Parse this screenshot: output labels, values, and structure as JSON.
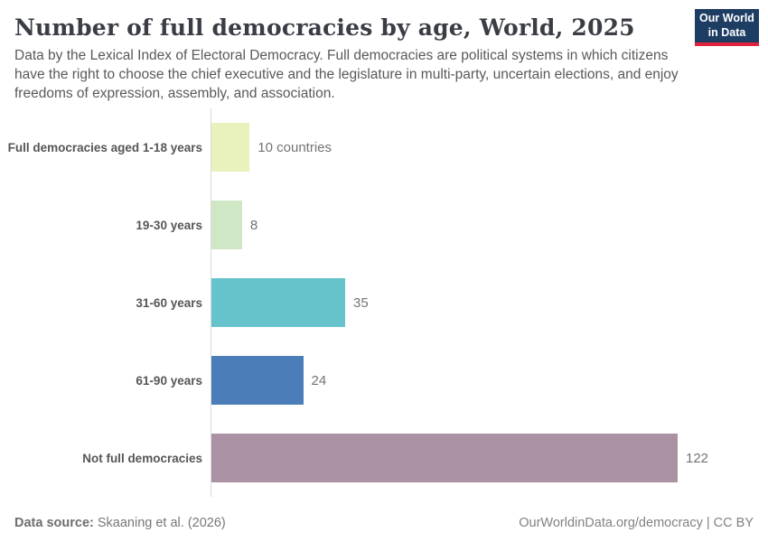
{
  "header": {
    "title": "Number of full democracies by age, World, 2025",
    "subtitle": "Data by the Lexical Index of Electoral Democracy. Full democracies are political systems in which citizens have the right to choose the chief executive and the legislature in multi-party, uncertain elections, and enjoy freedoms of expression, assembly, and association.",
    "logo": {
      "line1": "Our World",
      "line2": "in Data",
      "bg_color": "#1d3d63",
      "accent_color": "#e0233c"
    }
  },
  "chart_data": {
    "type": "bar",
    "orientation": "horizontal",
    "title": "Number of full democracies by age, World, 2025",
    "xlabel": "",
    "ylabel": "",
    "xlim": [
      0,
      122
    ],
    "grid": false,
    "legend": "none",
    "categories": [
      "Full democracies aged 1-18 years",
      "19-30 years",
      "31-60 years",
      "61-90 years",
      "Not full democracies"
    ],
    "values": [
      10,
      8,
      35,
      24,
      122
    ],
    "bars": [
      {
        "label": "Full democracies aged 1-18 years",
        "value": 10,
        "value_label": "10 countries",
        "color": "#e9f2bd"
      },
      {
        "label": "19-30 years",
        "value": 8,
        "value_label": "8",
        "color": "#cfe7c4"
      },
      {
        "label": "31-60 years",
        "value": 35,
        "value_label": "35",
        "color": "#66c3cc"
      },
      {
        "label": "61-90 years",
        "value": 24,
        "value_label": "24",
        "color": "#4b7eb8"
      },
      {
        "label": "Not full democracies",
        "value": 122,
        "value_label": "122",
        "color": "#ab91a4"
      }
    ]
  },
  "footer": {
    "source_prefix": "Data source:",
    "source_text": " Skaaning et al. (2026)",
    "credit": "OurWorldinData.org/democracy | CC BY"
  }
}
